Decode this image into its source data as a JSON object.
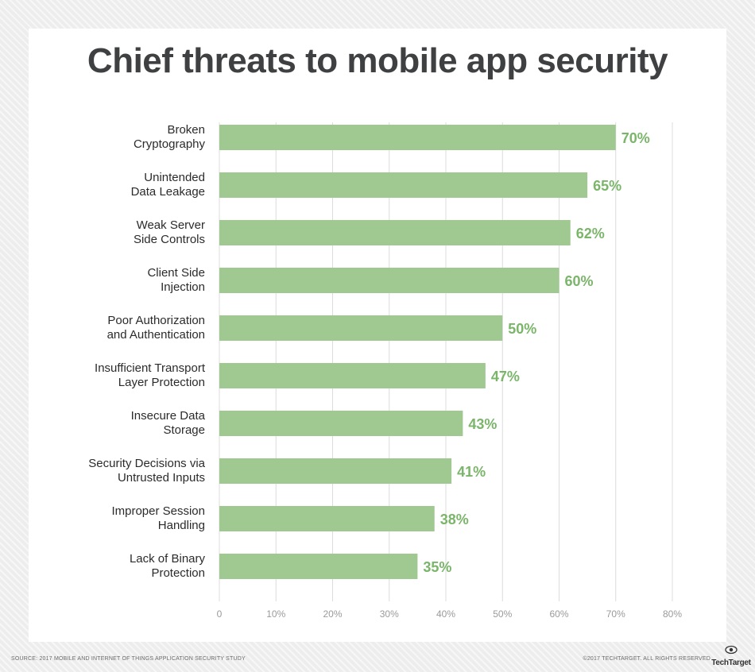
{
  "chart_data": {
    "type": "bar",
    "orientation": "horizontal",
    "title": "Chief threats to mobile app security",
    "categories": [
      [
        "Broken",
        "Cryptography"
      ],
      [
        "Unintended",
        "Data Leakage"
      ],
      [
        "Weak Server",
        "Side Controls"
      ],
      [
        "Client Side",
        "Injection"
      ],
      [
        "Poor Authorization",
        "and Authentication"
      ],
      [
        "Insufficient Transport",
        "Layer Protection"
      ],
      [
        "Insecure Data",
        "Storage"
      ],
      [
        "Security Decisions via",
        "Untrusted Inputs"
      ],
      [
        "Improper Session",
        "Handling"
      ],
      [
        "Lack of Binary",
        "Protection"
      ]
    ],
    "values": [
      70,
      65,
      62,
      60,
      50,
      47,
      43,
      41,
      38,
      35
    ],
    "value_labels": [
      "70%",
      "65%",
      "62%",
      "60%",
      "50%",
      "47%",
      "43%",
      "41%",
      "38%",
      "35%"
    ],
    "xlim": [
      0,
      80
    ],
    "xticks": [
      0,
      10,
      20,
      30,
      40,
      50,
      60,
      70,
      80
    ],
    "xtick_labels": [
      "0",
      "10%",
      "20%",
      "30%",
      "40%",
      "50%",
      "60%",
      "70%",
      "80%"
    ],
    "grid": true,
    "bar_color": "#9fc990",
    "label_color": "#7ab56a"
  },
  "footer": {
    "source": "SOURCE: 2017 MOBILE AND INTERNET OF THINGS APPLICATION SECURITY STUDY",
    "copyright": "©2017 TECHTARGET. ALL RIGHTS RESERVED",
    "logo_text": "TechTarget"
  },
  "icons": {
    "logo": "techtarget-eye-icon"
  }
}
